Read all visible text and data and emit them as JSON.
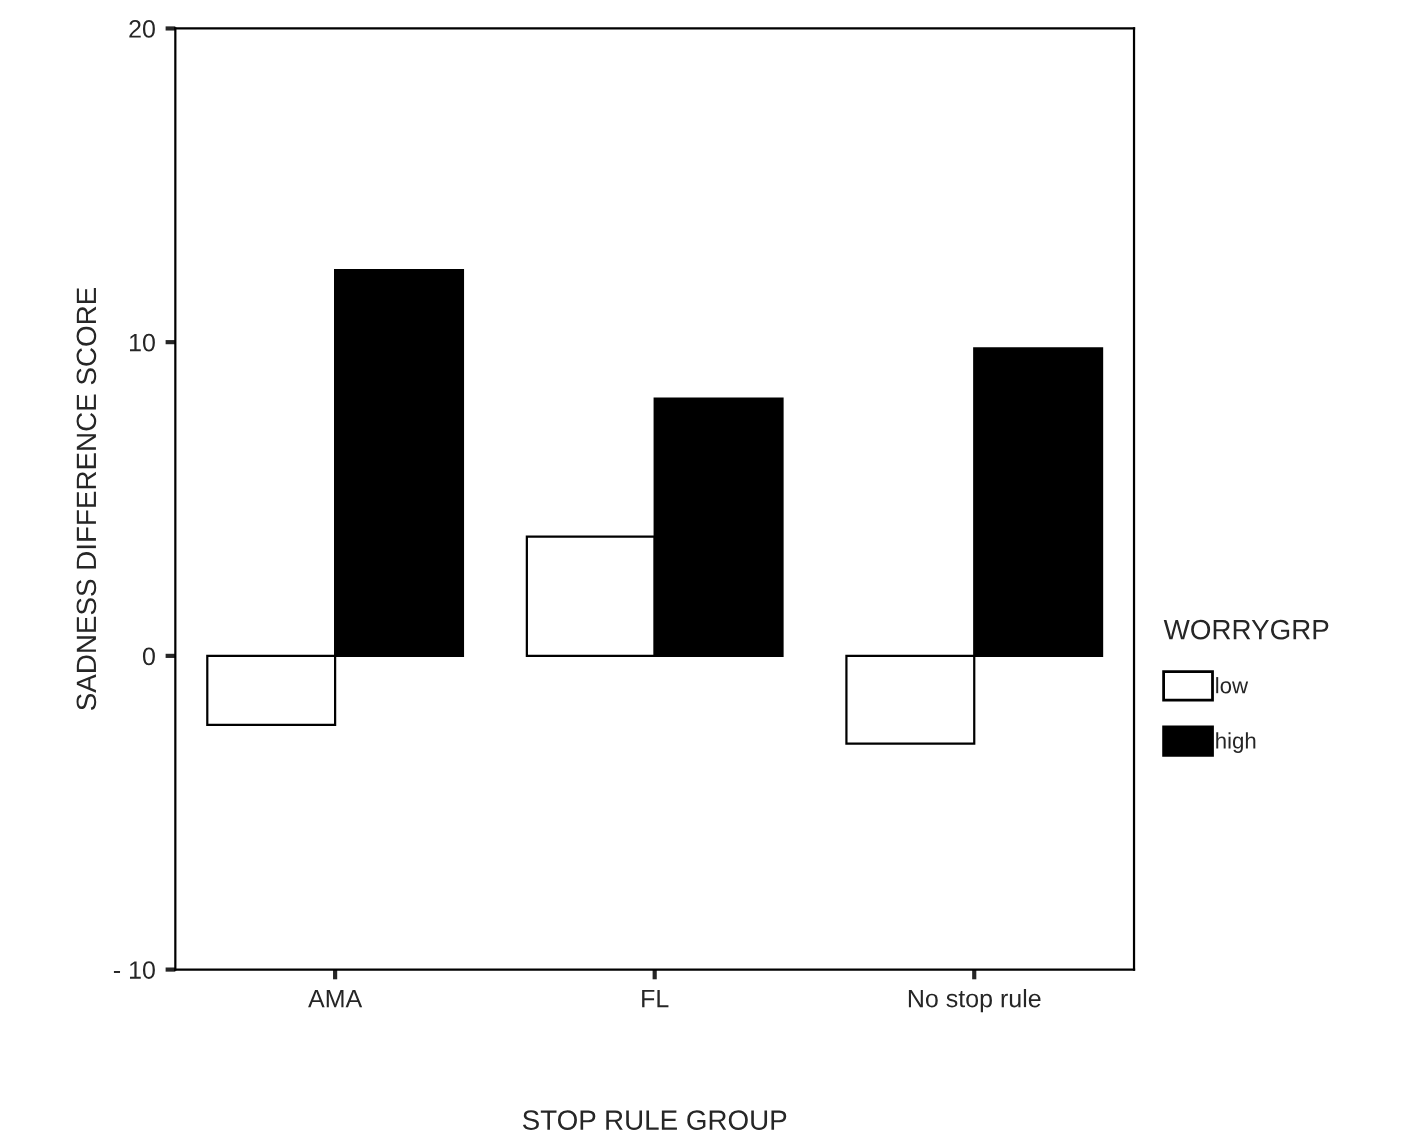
{
  "chart_data": {
    "type": "bar",
    "xlabel": "STOP RULE GROUP",
    "ylabel": "SADNESS DIFFERENCE SCORE",
    "legend_title": "WORRYGRP",
    "categories": [
      "AMA",
      "FL",
      "No stop rule"
    ],
    "series": [
      {
        "name": "low",
        "color": "#ffffff",
        "values": [
          -2.2,
          3.8,
          -2.8
        ]
      },
      {
        "name": "high",
        "color": "#000000",
        "values": [
          12.3,
          8.2,
          9.8
        ]
      }
    ],
    "ylim": [
      -10,
      20
    ],
    "yticks": [
      {
        "value": -10,
        "label": "- 10"
      },
      0,
      10,
      20
    ],
    "grid": false,
    "legend": "right"
  }
}
